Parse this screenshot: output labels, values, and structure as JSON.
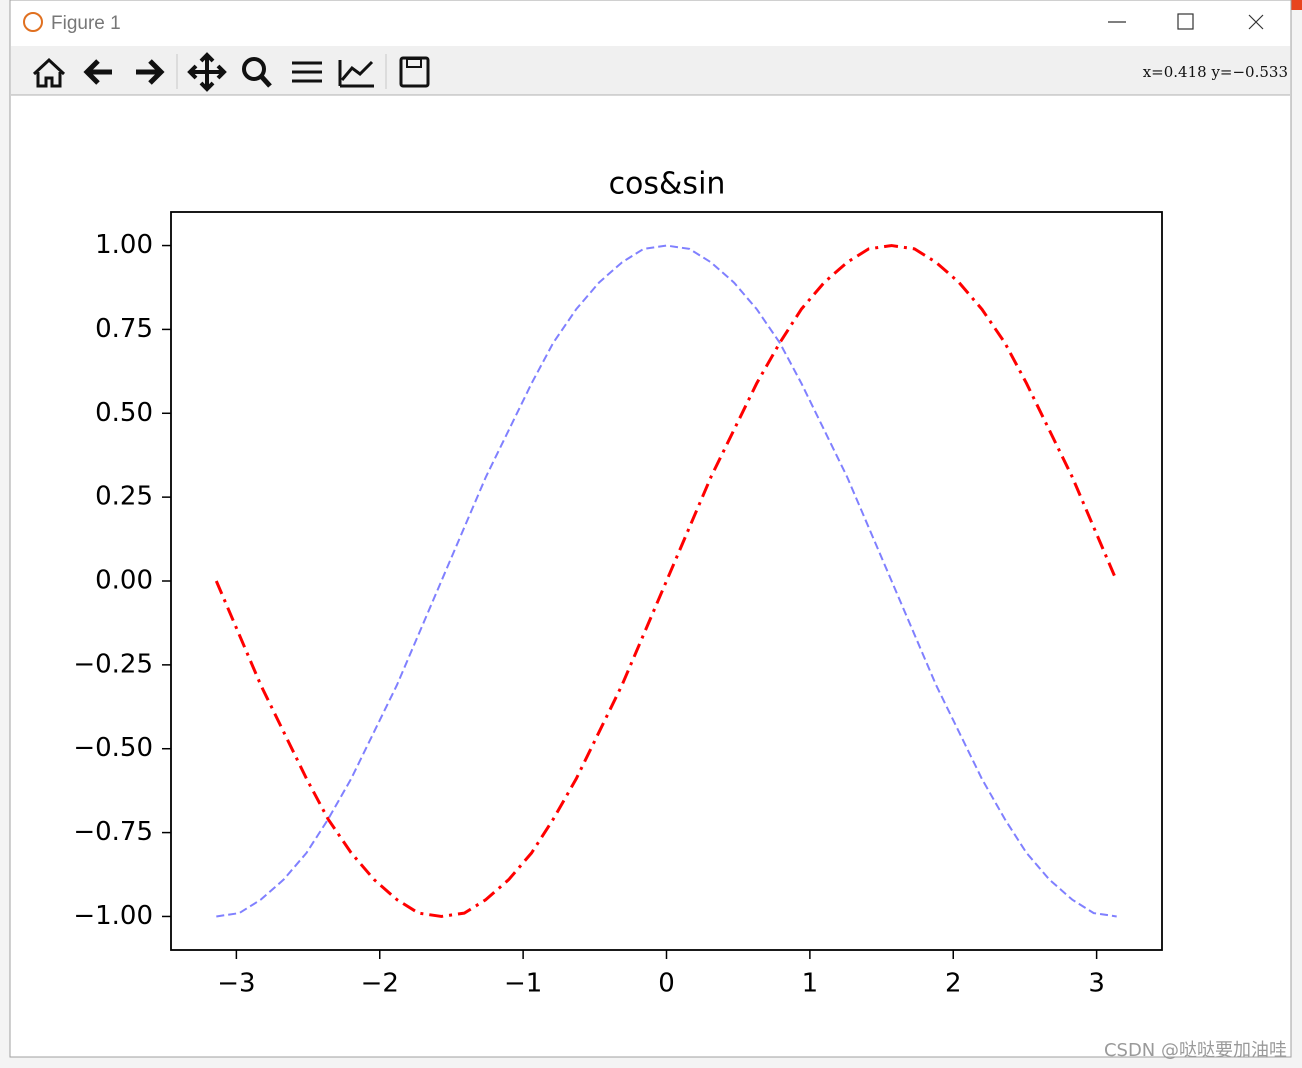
{
  "window": {
    "title": "Figure 1",
    "coordinates": "x=0.418  y=−0.533",
    "watermark": "CSDN @哒哒要加油哇"
  },
  "chart_data": {
    "type": "line",
    "title": "cos&sin",
    "x": [
      -3.14,
      -2.98,
      -2.83,
      -2.67,
      -2.51,
      -2.36,
      -2.2,
      -2.04,
      -1.88,
      -1.73,
      -1.57,
      -1.41,
      -1.26,
      -1.1,
      -0.94,
      -0.79,
      -0.63,
      -0.47,
      -0.31,
      -0.16,
      0,
      0.16,
      0.31,
      0.47,
      0.63,
      0.79,
      0.94,
      1.1,
      1.26,
      1.41,
      1.57,
      1.73,
      1.88,
      2.04,
      2.2,
      2.36,
      2.51,
      2.67,
      2.83,
      2.98,
      3.14
    ],
    "series": [
      {
        "color": "#8080ff",
        "linestyle": "dashed",
        "linewidth": 2,
        "values": [
          -1,
          -0.99,
          -0.95,
          -0.89,
          -0.81,
          -0.71,
          -0.59,
          -0.45,
          -0.31,
          -0.16,
          0,
          0.16,
          0.31,
          0.45,
          0.59,
          0.71,
          0.81,
          0.89,
          0.95,
          0.99,
          1,
          0.99,
          0.95,
          0.89,
          0.81,
          0.71,
          0.59,
          0.45,
          0.31,
          0.16,
          0,
          -0.16,
          -0.31,
          -0.45,
          -0.59,
          -0.71,
          -0.81,
          -0.89,
          -0.95,
          -0.99,
          -1
        ]
      },
      {
        "color": "#ff0000",
        "linestyle": "dashdot",
        "linewidth": 3,
        "values": [
          0,
          -0.16,
          -0.31,
          -0.45,
          -0.59,
          -0.71,
          -0.81,
          -0.89,
          -0.95,
          -0.99,
          -1,
          -0.99,
          -0.95,
          -0.89,
          -0.81,
          -0.71,
          -0.59,
          -0.45,
          -0.31,
          -0.16,
          0,
          0.16,
          0.31,
          0.45,
          0.59,
          0.71,
          0.81,
          0.89,
          0.95,
          0.99,
          1,
          0.99,
          0.95,
          0.89,
          0.81,
          0.71,
          0.59,
          0.45,
          0.31,
          0.16,
          0
        ]
      }
    ],
    "xlim": [
      -3.456,
      3.456
    ],
    "ylim": [
      -1.1,
      1.1
    ],
    "xticks": [
      {
        "value": -3,
        "label": "−3"
      },
      {
        "value": -2,
        "label": "−2"
      },
      {
        "value": -1,
        "label": "−1"
      },
      0,
      1,
      2,
      3
    ],
    "yticks": [
      {
        "value": -1,
        "label": "−1.00"
      },
      {
        "value": -0.75,
        "label": "−0.75"
      },
      {
        "value": -0.5,
        "label": "−0.50"
      },
      {
        "value": -0.25,
        "label": "−0.25"
      },
      {
        "value": 0,
        "label": "0.00"
      },
      {
        "value": 0.25,
        "label": "0.25"
      },
      {
        "value": 0.5,
        "label": "0.50"
      },
      {
        "value": 0.75,
        "label": "0.75"
      },
      {
        "value": 1,
        "label": "1.00"
      }
    ],
    "grid": false
  }
}
